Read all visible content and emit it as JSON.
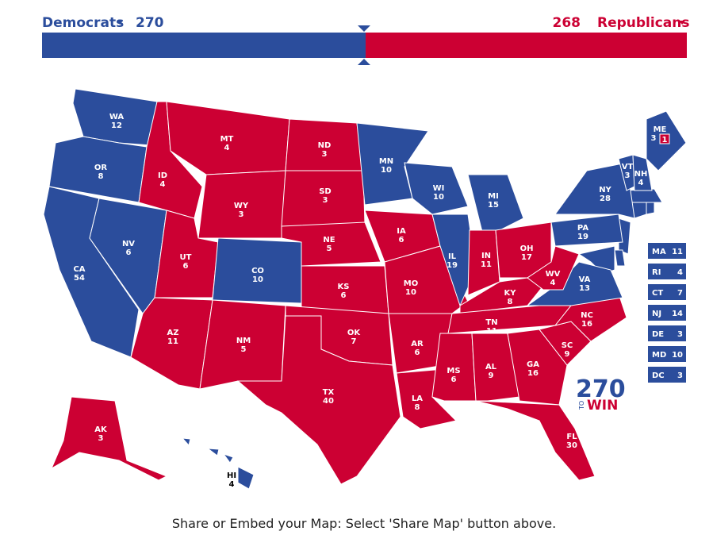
{
  "header": {
    "dem_label": "Democrats",
    "dem_votes": 270,
    "rep_votes": 268,
    "rep_label": "Republicans",
    "dem_color": "#2b4d9c",
    "rep_color": "#cc0033"
  },
  "states": [
    {
      "abbr": "WA",
      "votes": 12,
      "color": "#2b4d9c"
    },
    {
      "abbr": "OR",
      "votes": 8,
      "color": "#2b4d9c"
    },
    {
      "abbr": "CA",
      "votes": 54,
      "color": "#2b4d9c"
    },
    {
      "abbr": "NV",
      "votes": 6,
      "color": "#2b4d9c"
    },
    {
      "abbr": "ID",
      "votes": 4,
      "color": "#cc0033"
    },
    {
      "abbr": "MT",
      "votes": 4,
      "color": "#cc0033"
    },
    {
      "abbr": "WY",
      "votes": 3,
      "color": "#cc0033"
    },
    {
      "abbr": "UT",
      "votes": 6,
      "color": "#cc0033"
    },
    {
      "abbr": "CO",
      "votes": 10,
      "color": "#2b4d9c"
    },
    {
      "abbr": "AZ",
      "votes": 11,
      "color": "#cc0033"
    },
    {
      "abbr": "NM",
      "votes": 5,
      "color": "#cc0033"
    },
    {
      "abbr": "ND",
      "votes": 3,
      "color": "#cc0033"
    },
    {
      "abbr": "SD",
      "votes": 3,
      "color": "#cc0033"
    },
    {
      "abbr": "NE",
      "votes": 5,
      "color": "#cc0033"
    },
    {
      "abbr": "KS",
      "votes": 6,
      "color": "#cc0033"
    },
    {
      "abbr": "OK",
      "votes": 7,
      "color": "#cc0033"
    },
    {
      "abbr": "TX",
      "votes": 40,
      "color": "#cc0033"
    },
    {
      "abbr": "MN",
      "votes": 10,
      "color": "#2b4d9c"
    },
    {
      "abbr": "IA",
      "votes": 6,
      "color": "#cc0033"
    },
    {
      "abbr": "MO",
      "votes": 10,
      "color": "#cc0033"
    },
    {
      "abbr": "AR",
      "votes": 6,
      "color": "#cc0033"
    },
    {
      "abbr": "LA",
      "votes": 8,
      "color": "#cc0033"
    },
    {
      "abbr": "WI",
      "votes": 10,
      "color": "#2b4d9c"
    },
    {
      "abbr": "MI",
      "votes": 15,
      "color": "#2b4d9c"
    },
    {
      "abbr": "IL",
      "votes": 19,
      "color": "#2b4d9c"
    },
    {
      "abbr": "IN",
      "votes": 11,
      "color": "#cc0033"
    },
    {
      "abbr": "OH",
      "votes": 17,
      "color": "#cc0033"
    },
    {
      "abbr": "KY",
      "votes": 8,
      "color": "#cc0033"
    },
    {
      "abbr": "TN",
      "votes": 11,
      "color": "#cc0033"
    },
    {
      "abbr": "MS",
      "votes": 6,
      "color": "#cc0033"
    },
    {
      "abbr": "AL",
      "votes": 9,
      "color": "#cc0033"
    },
    {
      "abbr": "GA",
      "votes": 16,
      "color": "#cc0033"
    },
    {
      "abbr": "FL",
      "votes": 30,
      "color": "#cc0033"
    },
    {
      "abbr": "SC",
      "votes": 9,
      "color": "#cc0033"
    },
    {
      "abbr": "NC",
      "votes": 16,
      "color": "#cc0033"
    },
    {
      "abbr": "VA",
      "votes": 13,
      "color": "#2b4d9c"
    },
    {
      "abbr": "WV",
      "votes": 4,
      "color": "#cc0033"
    },
    {
      "abbr": "PA",
      "votes": 19,
      "color": "#2b4d9c"
    },
    {
      "abbr": "NY",
      "votes": 28,
      "color": "#2b4d9c"
    },
    {
      "abbr": "VT",
      "votes": 3,
      "color": "#2b4d9c"
    },
    {
      "abbr": "NH",
      "votes": 4,
      "color": "#2b4d9c"
    },
    {
      "abbr": "ME",
      "votes": 3,
      "color": "#2b4d9c",
      "split_votes": 1,
      "split_color": "#cc0033"
    },
    {
      "abbr": "AK",
      "votes": 3,
      "color": "#cc0033"
    },
    {
      "abbr": "HI",
      "votes": 4,
      "color": "#2b4d9c"
    }
  ],
  "callouts": [
    {
      "abbr": "MA",
      "votes": 11,
      "color": "#2b4d9c"
    },
    {
      "abbr": "RI",
      "votes": 4,
      "color": "#2b4d9c"
    },
    {
      "abbr": "CT",
      "votes": 7,
      "color": "#2b4d9c"
    },
    {
      "abbr": "NJ",
      "votes": 14,
      "color": "#2b4d9c"
    },
    {
      "abbr": "DE",
      "votes": 3,
      "color": "#2b4d9c"
    },
    {
      "abbr": "MD",
      "votes": 10,
      "color": "#2b4d9c"
    },
    {
      "abbr": "DC",
      "votes": 3,
      "color": "#2b4d9c"
    }
  ],
  "logo": {
    "number": "270",
    "to": "TO",
    "win": "WIN"
  },
  "footer": "Share or Embed your Map: Select 'Share Map' button above."
}
